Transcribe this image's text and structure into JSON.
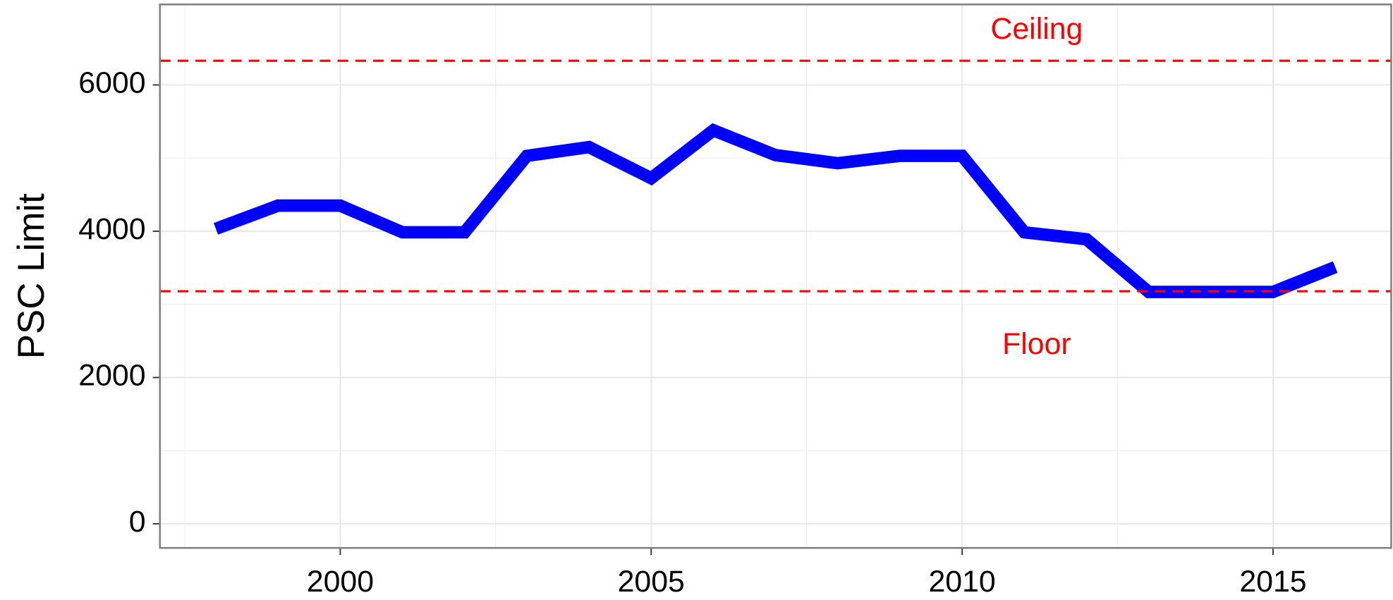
{
  "chart_data": {
    "type": "line",
    "y_label": "PSC Limit",
    "x": [
      1998,
      1999,
      2000,
      2001,
      2002,
      2003,
      2004,
      2005,
      2006,
      2007,
      2008,
      2009,
      2010,
      2011,
      2012,
      2013,
      2014,
      2015,
      2016
    ],
    "series": [
      {
        "name": "PSC Limit",
        "color": "#0000ff",
        "values": [
          4033,
          4350,
          4350,
          3985,
          3985,
          5030,
          5150,
          4725,
          5380,
          5040,
          4930,
          5030,
          5030,
          3985,
          3890,
          3170,
          3170,
          3170,
          3510
        ]
      }
    ],
    "xlim": [
      1997.1,
      2016.9
    ],
    "ylim": [
      -330,
      7100
    ],
    "xticks": [
      2000,
      2005,
      2010,
      2015
    ],
    "yticks": [
      0,
      2000,
      4000,
      6000
    ],
    "xminor": [
      1997.5,
      2002.5,
      2007.5,
      2012.5
    ],
    "yminor": [
      1000,
      3000,
      5000
    ],
    "grid": true,
    "reference_lines": [
      {
        "y": 6330,
        "color": "#ff0000",
        "label": "Ceiling",
        "label_x": 2011.2,
        "label_y": 6740
      },
      {
        "y": 3180,
        "color": "#ff0000",
        "label": "Floor",
        "label_x": 2011.2,
        "label_y": 2430
      }
    ]
  }
}
